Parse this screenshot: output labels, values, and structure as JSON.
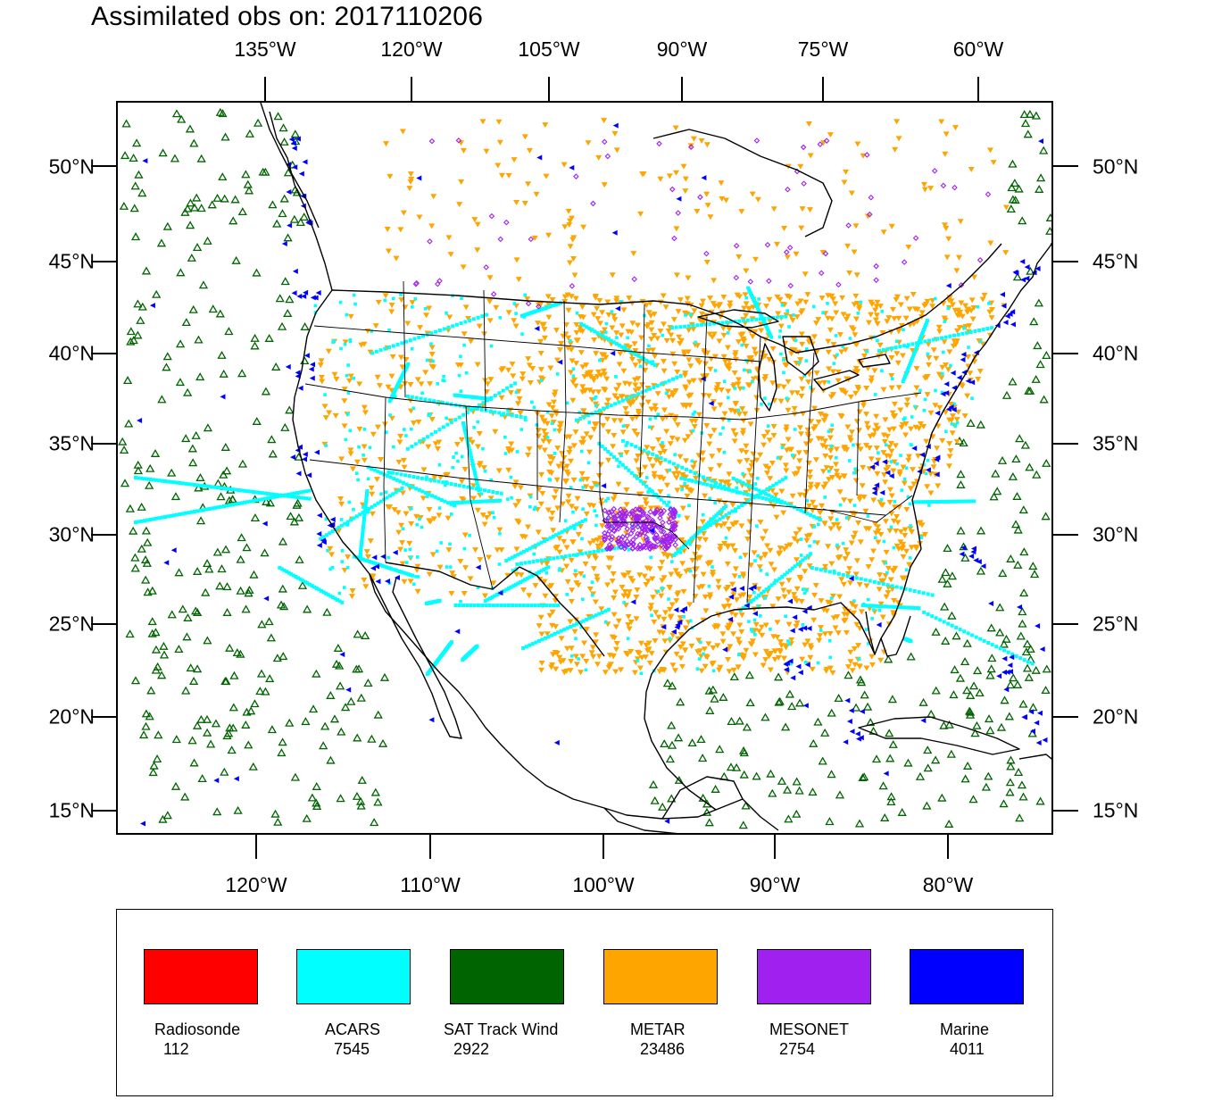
{
  "title": "Assimilated obs on: 2017110206",
  "axes": {
    "top_lon_labels": [
      "135°W",
      "120°W",
      "105°W",
      "90°W",
      "75°W",
      "60°W"
    ],
    "bottom_lon_labels": [
      "120°W",
      "110°W",
      "100°W",
      "90°W",
      "80°W"
    ],
    "lat_labels": [
      "50°N",
      "45°N",
      "40°N",
      "35°N",
      "30°N",
      "25°N",
      "20°N",
      "15°N"
    ]
  },
  "legend": [
    {
      "name": "Radiosonde",
      "count": "112",
      "color": "#ff0000"
    },
    {
      "name": "ACARS",
      "count": "7545",
      "color": "#00ffff"
    },
    {
      "name": "SAT Track Wind",
      "count": "2922",
      "color": "#006400"
    },
    {
      "name": "METAR",
      "count": "23486",
      "color": "#ffa500"
    },
    {
      "name": "MESONET",
      "count": "2754",
      "color": "#a020f0"
    },
    {
      "name": "Marine",
      "count": "4011",
      "color": "#0000ff"
    }
  ]
}
